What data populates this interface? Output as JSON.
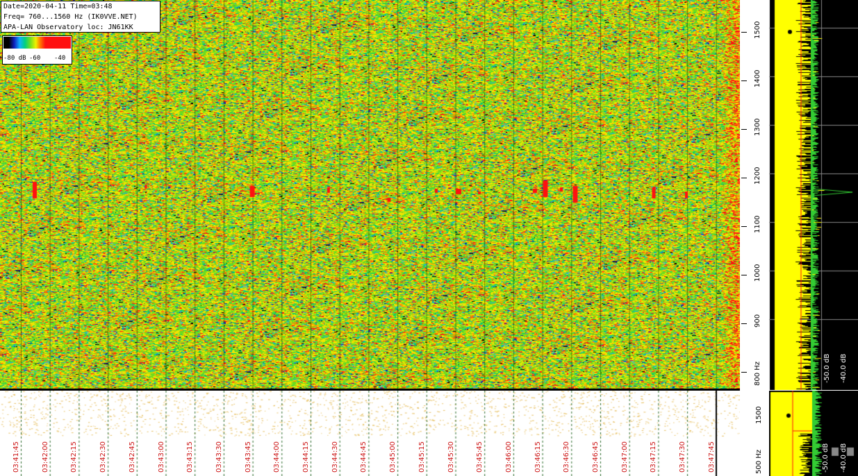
{
  "info": {
    "line1": "Date=2020-04-11 Time=03:48",
    "line2": "Freq= 760...1560 Hz (IK0VVE.NET)",
    "line3": "APA-LAN Observatory loc: JN61KK"
  },
  "legend": {
    "l1": "-80 dB",
    "l2": "-60",
    "l3": "-40"
  },
  "hz_axis": {
    "labels": [
      "1500",
      "1400",
      "1300",
      "1200",
      "1100",
      "1000",
      "900",
      "800 Hz"
    ]
  },
  "lower_hz_axis": {
    "labels": [
      "1500",
      "500 Hz"
    ]
  },
  "time_labels": [
    "03:41:45",
    "03:42:00",
    "03:42:15",
    "03:42:30",
    "03:42:45",
    "03:43:00",
    "03:43:15",
    "03:43:30",
    "03:43:45",
    "03:44:00",
    "03:44:15",
    "03:44:30",
    "03:44:45",
    "03:45:00",
    "03:45:15",
    "03:45:30",
    "03:45:45",
    "03:46:00",
    "03:46:15",
    "03:46:30",
    "03:46:45",
    "03:47:00",
    "03:47:15",
    "03:47:30",
    "03:47:45"
  ],
  "spectrum": {
    "db1": "-50.0 dB",
    "db2": "-40.0 dB",
    "db3": "-50.0 dB",
    "db4": "-40.0 dB"
  },
  "colors": {
    "waterfall_base": "#f0d020",
    "trace_yellow": "#ffff00",
    "trace_green": "#33cc33",
    "signal_red": "#ff1010",
    "time_label": "#cc1111"
  }
}
